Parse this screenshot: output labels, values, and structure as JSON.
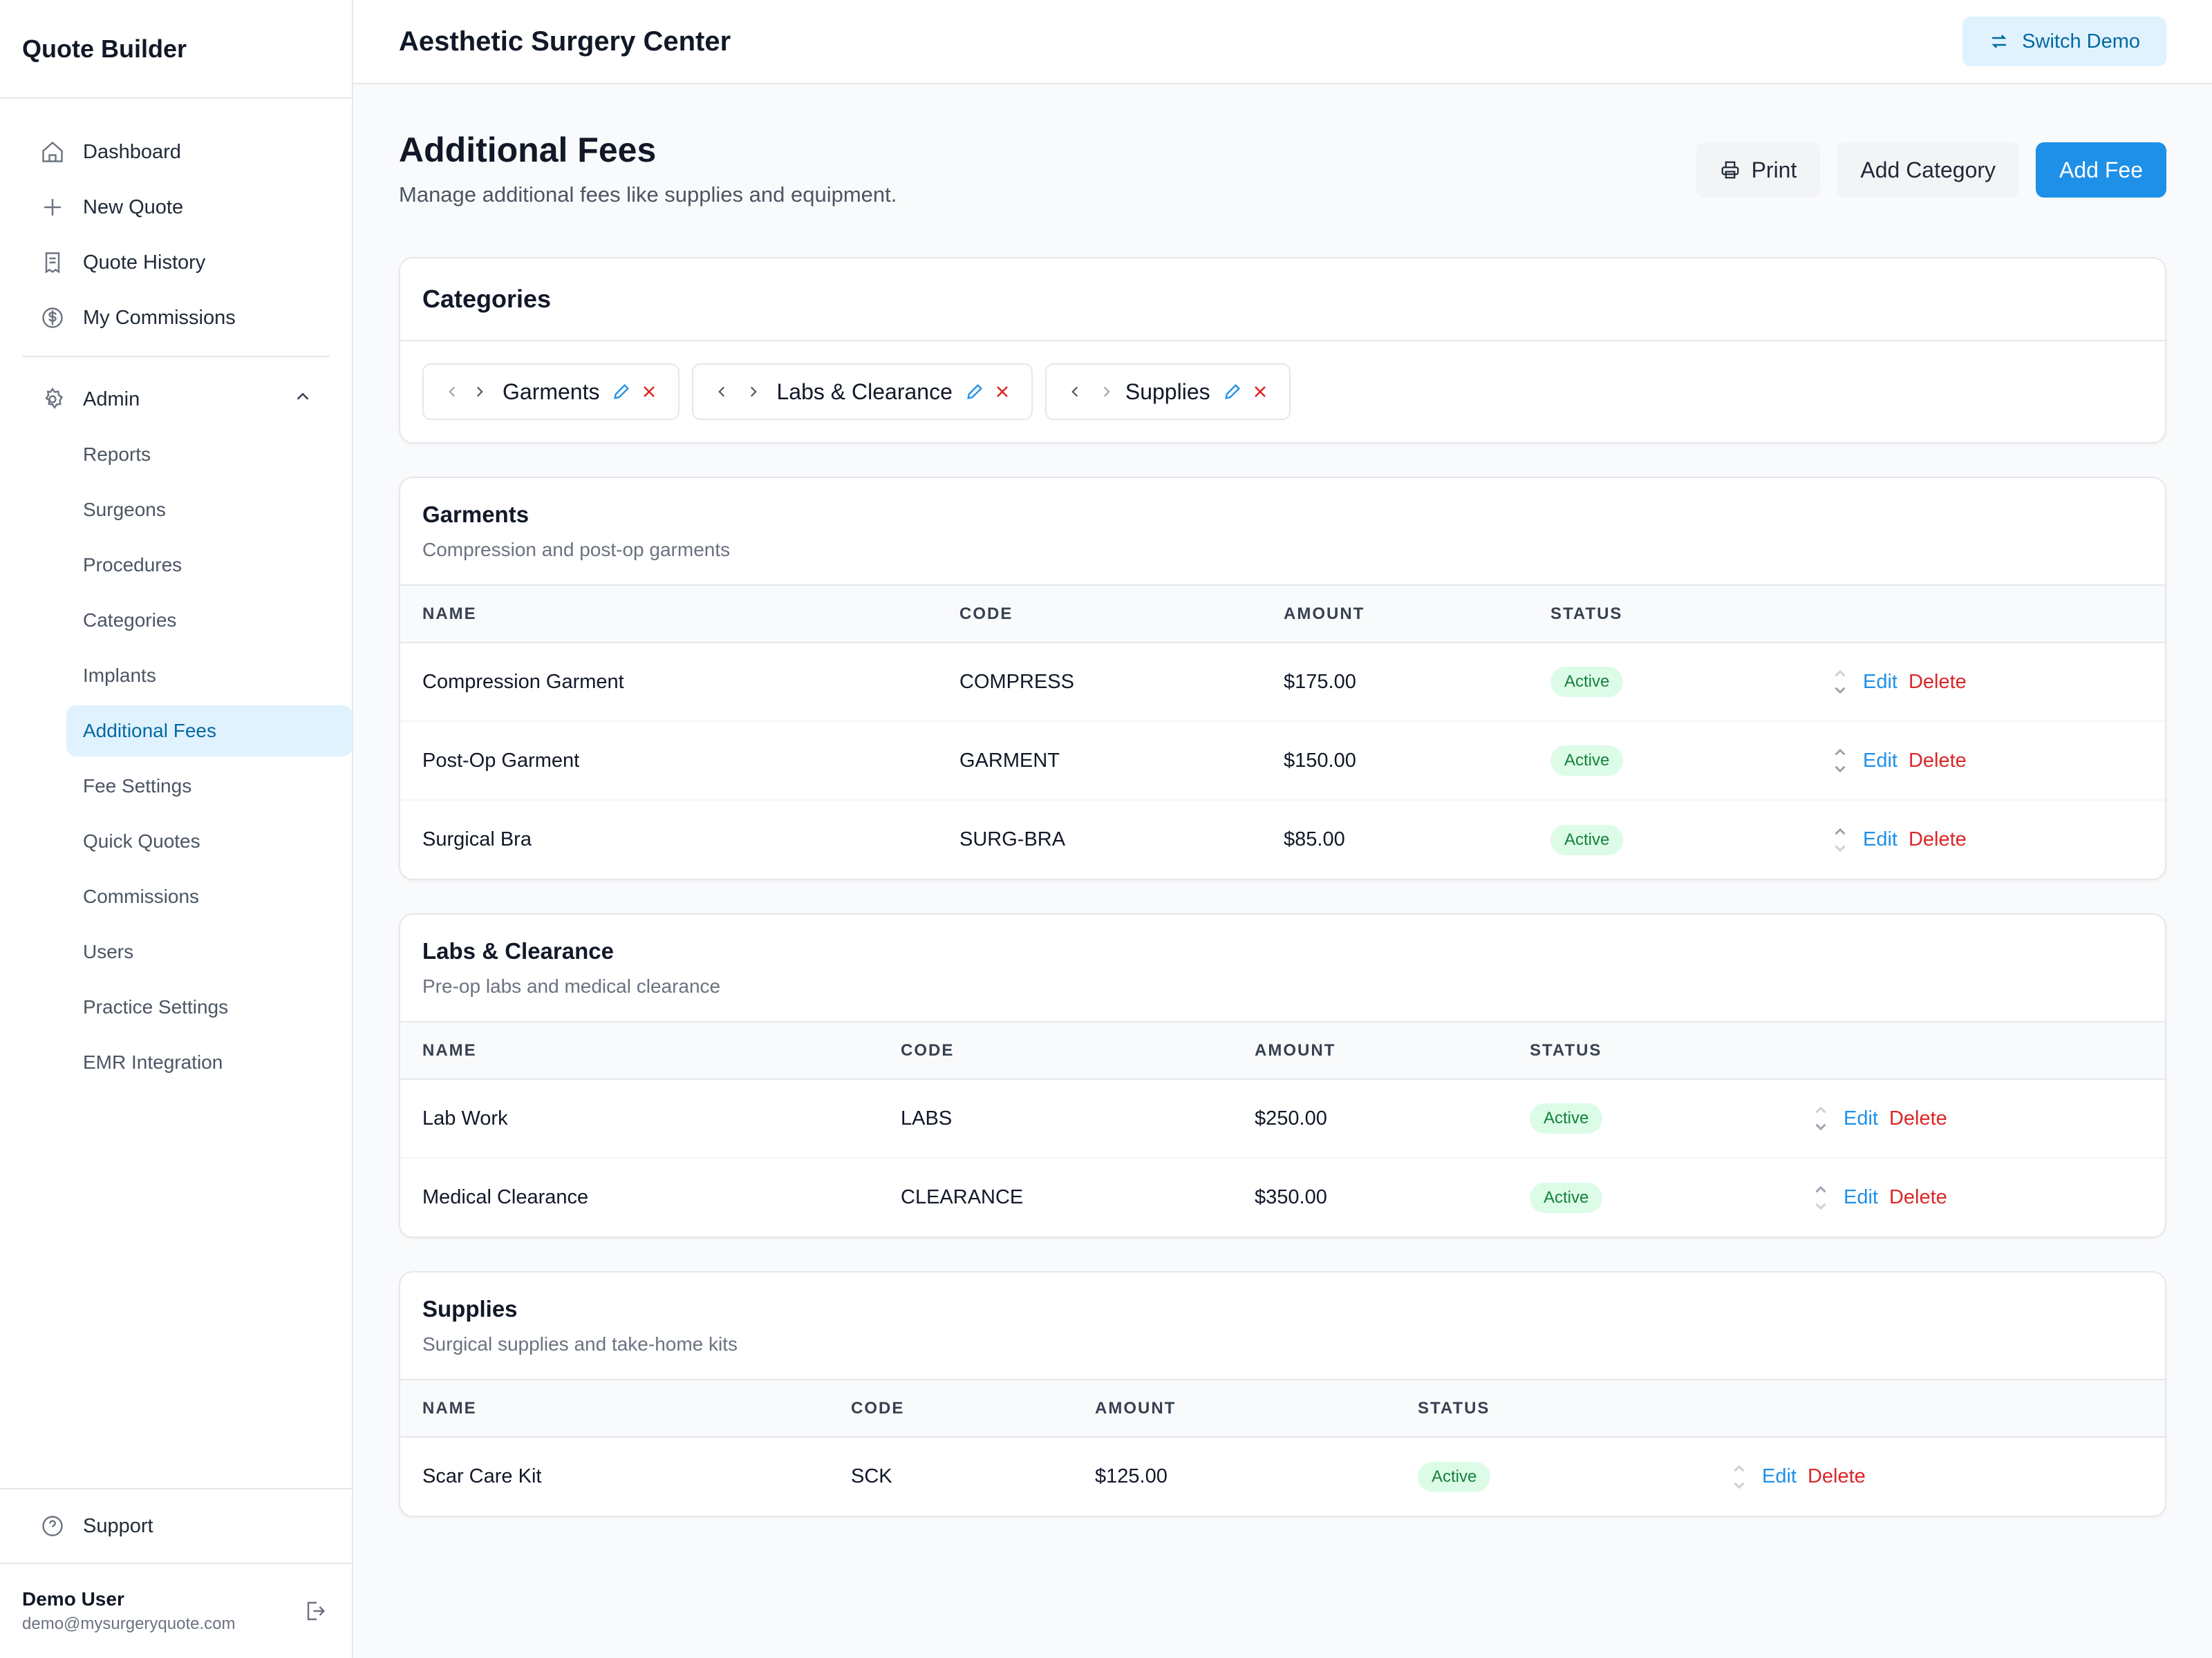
{
  "app": {
    "title": "Quote Builder"
  },
  "sidebar": {
    "nav": [
      {
        "label": "Dashboard",
        "icon": "home-icon"
      },
      {
        "label": "New Quote",
        "icon": "plus-icon"
      },
      {
        "label": "Quote History",
        "icon": "receipt-icon"
      },
      {
        "label": "My Commissions",
        "icon": "dollar-circle-icon"
      }
    ],
    "admin": {
      "label": "Admin",
      "icon": "gear-icon"
    },
    "admin_items": [
      "Reports",
      "Surgeons",
      "Procedures",
      "Categories",
      "Implants",
      "Additional Fees",
      "Fee Settings",
      "Quick Quotes",
      "Commissions",
      "Users",
      "Practice Settings",
      "EMR Integration"
    ],
    "active_item": "Additional Fees",
    "support": "Support",
    "user": {
      "name": "Demo User",
      "email": "demo@mysurgeryquote.com"
    }
  },
  "header": {
    "practice_name": "Aesthetic Surgery Center",
    "switch_label": "Switch Demo"
  },
  "page": {
    "title": "Additional Fees",
    "subtitle": "Manage additional fees like supplies and equipment.",
    "print_label": "Print",
    "add_category_label": "Add Category",
    "add_fee_label": "Add Fee"
  },
  "categories": {
    "title": "Categories",
    "chips": [
      "Garments",
      "Labs & Clearance",
      "Supplies"
    ]
  },
  "columns": {
    "name": "NAME",
    "code": "CODE",
    "amount": "AMOUNT",
    "status": "STATUS"
  },
  "row_actions": {
    "edit": "Edit",
    "delete": "Delete"
  },
  "sections": [
    {
      "title": "Garments",
      "description": "Compression and post-op garments",
      "rows": [
        {
          "name": "Compression Garment",
          "code": "COMPRESS",
          "amount": "$175.00",
          "status": "Active"
        },
        {
          "name": "Post-Op Garment",
          "code": "GARMENT",
          "amount": "$150.00",
          "status": "Active"
        },
        {
          "name": "Surgical Bra",
          "code": "SURG-BRA",
          "amount": "$85.00",
          "status": "Active"
        }
      ]
    },
    {
      "title": "Labs & Clearance",
      "description": "Pre-op labs and medical clearance",
      "rows": [
        {
          "name": "Lab Work",
          "code": "LABS",
          "amount": "$250.00",
          "status": "Active"
        },
        {
          "name": "Medical Clearance",
          "code": "CLEARANCE",
          "amount": "$350.00",
          "status": "Active"
        }
      ]
    },
    {
      "title": "Supplies",
      "description": "Surgical supplies and take-home kits",
      "rows": [
        {
          "name": "Scar Care Kit",
          "code": "SCK",
          "amount": "$125.00",
          "status": "Active"
        }
      ]
    }
  ],
  "colors": {
    "accent": "#1e90e8",
    "active_bg": "#e0f2fe",
    "danger": "#dc2626",
    "success_bg": "#dcfce7",
    "success_text": "#15803d"
  }
}
